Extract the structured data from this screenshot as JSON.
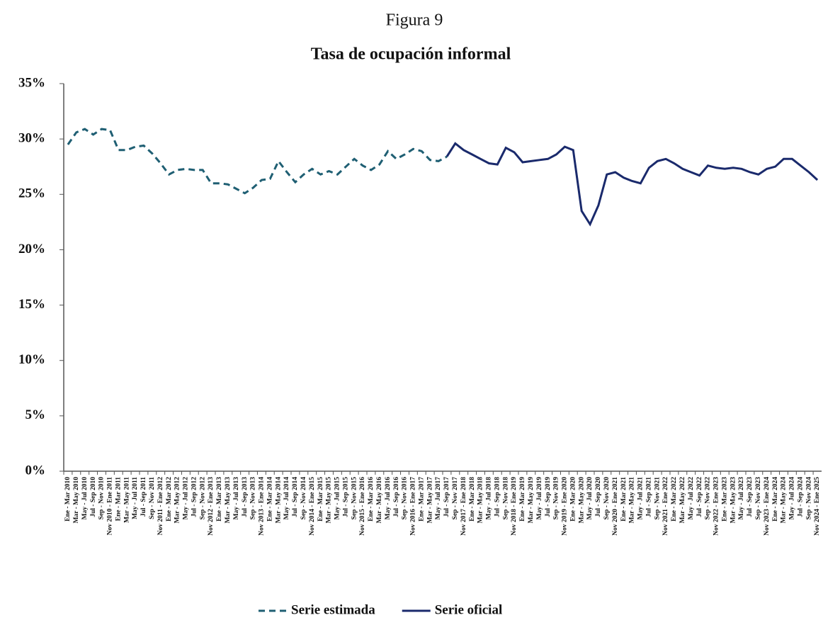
{
  "header": "Figura 9",
  "chart_data": {
    "type": "line",
    "title": "Tasa de ocupación informal",
    "categories": [
      "Ene - Mar 2010",
      "Mar - May 2010",
      "May - Jul 2010",
      "Jul - Sep 2010",
      "Sep - Nov 2010",
      "Nov 2010 - Ene 2011",
      "Ene - Mar 2011",
      "Mar - May 2011",
      "May - Jul 2011",
      "Jul - Sep 2011",
      "Sep - Nov 2011",
      "Nov 2011 - Ene 2012",
      "Ene - Mar 2012",
      "Mar - May 2012",
      "May - Jul 2012",
      "Jul - Sep 2012",
      "Sep - Nov 2012",
      "Nov 2012 - Ene 2013",
      "Ene - Mar 2013",
      "Mar - May 2013",
      "May - Jul 2013",
      "Jul - Sep 2013",
      "Sep - Nov 2013",
      "Nov 2013 - Ene 2014",
      "Ene - Mar 2014",
      "Mar - May 2014",
      "May - Jul 2014",
      "Jul - Sep 2014",
      "Sep - Nov 2014",
      "Nov 2014 - Ene 2015",
      "Ene - Mar 2015",
      "Mar - May 2015",
      "May - Jul 2015",
      "Jul - Sep 2015",
      "Sep - Nov 2015",
      "Nov 2015 - Ene 2016",
      "Ene - Mar 2016",
      "Mar - May 2016",
      "May - Jul 2016",
      "Jul - Sep 2016",
      "Sep - Nov 2016",
      "Nov 2016 - Ene 2017",
      "Ene - Mar 2017",
      "Mar - May 2017",
      "May - Jul 2017",
      "Jul - Sep 2017",
      "Sep - Nov 2017",
      "Nov 2017 - Ene 2018",
      "Ene - Mar 2018",
      "Mar - May 2018",
      "May - Jul 2018",
      "Jul - Sep 2018",
      "Sep - Nov 2018",
      "Nov 2018 - Ene 2019",
      "Ene - Mar 2019",
      "Mar - May 2019",
      "May - Jul 2019",
      "Jul - Sep 2019",
      "Sep - Nov 2019",
      "Nov 2019 - Ene 2020",
      "Ene - Mar 2020",
      "Mar - May 2020",
      "May - Jul 2020",
      "Jul - Sep 2020",
      "Sep - Nov 2020",
      "Nov 2020 - Ene 2021",
      "Ene - Mar 2021",
      "Mar - May 2021",
      "May - Jul 2021",
      "Jul - Sep 2021",
      "Sep - Nov 2021",
      "Nov 2021 - Ene 2022",
      "Ene - Mar 2022",
      "Mar - May 2022",
      "May - Jul 2022",
      "Jul - Sep 2022",
      "Sep - Nov 2022",
      "Nov 2022 - Ene 2023",
      "Ene - Mar 2023",
      "Mar - May 2023",
      "May - Jul 2023",
      "Jul - Sep 2023",
      "Sep - Nov 2023",
      "Nov 2023 - Ene 2024",
      "Ene - Mar 2024",
      "Mar - May 2024",
      "May - Jul 2024",
      "Jul - Sep 2024",
      "Sep - Nov 2024",
      "Nov 2024 - Ene 2025"
    ],
    "series": [
      {
        "name": "Serie estimada",
        "color": "#1f5f73",
        "dashed": true,
        "values": [
          29.5,
          30.6,
          30.9,
          30.4,
          30.9,
          30.8,
          29.0,
          29.0,
          29.3,
          29.4,
          28.7,
          27.8,
          26.8,
          27.2,
          27.3,
          27.2,
          27.2,
          26.0,
          26.0,
          25.9,
          25.5,
          25.1,
          25.6,
          26.3,
          26.4,
          28.0,
          27.0,
          26.1,
          26.8,
          27.3,
          26.8,
          27.1,
          26.8,
          27.5,
          28.2,
          27.6,
          27.2,
          27.7,
          28.9,
          28.2,
          28.6,
          29.1,
          28.9,
          28.1,
          28.0,
          28.4,
          null,
          null,
          null,
          null,
          null,
          null,
          null,
          null,
          null,
          null,
          null,
          null,
          null,
          null,
          null,
          null,
          null,
          null,
          null,
          null,
          null,
          null,
          null,
          null,
          null,
          null,
          null,
          null,
          null,
          null,
          null,
          null,
          null,
          null,
          null,
          null,
          null,
          null,
          null,
          null,
          null,
          null,
          null,
          null
        ]
      },
      {
        "name": "Serie oficial",
        "color": "#1a2a6c",
        "dashed": false,
        "values": [
          null,
          null,
          null,
          null,
          null,
          null,
          null,
          null,
          null,
          null,
          null,
          null,
          null,
          null,
          null,
          null,
          null,
          null,
          null,
          null,
          null,
          null,
          null,
          null,
          null,
          null,
          null,
          null,
          null,
          null,
          null,
          null,
          null,
          null,
          null,
          null,
          null,
          null,
          null,
          null,
          null,
          null,
          null,
          null,
          null,
          28.4,
          29.6,
          29.0,
          28.6,
          28.2,
          27.8,
          27.7,
          29.2,
          28.8,
          27.9,
          28.0,
          28.1,
          28.2,
          28.6,
          29.3,
          29.0,
          23.5,
          22.3,
          24.0,
          26.8,
          27.0,
          26.5,
          26.2,
          26.0,
          27.4,
          28.0,
          28.2,
          27.8,
          27.3,
          27.0,
          26.7,
          27.6,
          27.4,
          27.3,
          27.4,
          27.3,
          27.0,
          26.8,
          27.3,
          27.5,
          28.2,
          28.2,
          27.6,
          27.0,
          26.3
        ]
      }
    ],
    "ylim": [
      0,
      35
    ],
    "yticks": [
      {
        "value": 0,
        "label": "0%"
      },
      {
        "value": 5,
        "label": "5%"
      },
      {
        "value": 10,
        "label": "10%"
      },
      {
        "value": 15,
        "label": "15%"
      },
      {
        "value": 20,
        "label": "20%"
      },
      {
        "value": 25,
        "label": "25%"
      },
      {
        "value": 30,
        "label": "30%"
      },
      {
        "value": 35,
        "label": "35%"
      }
    ],
    "grid": false,
    "legend": "bottom"
  }
}
